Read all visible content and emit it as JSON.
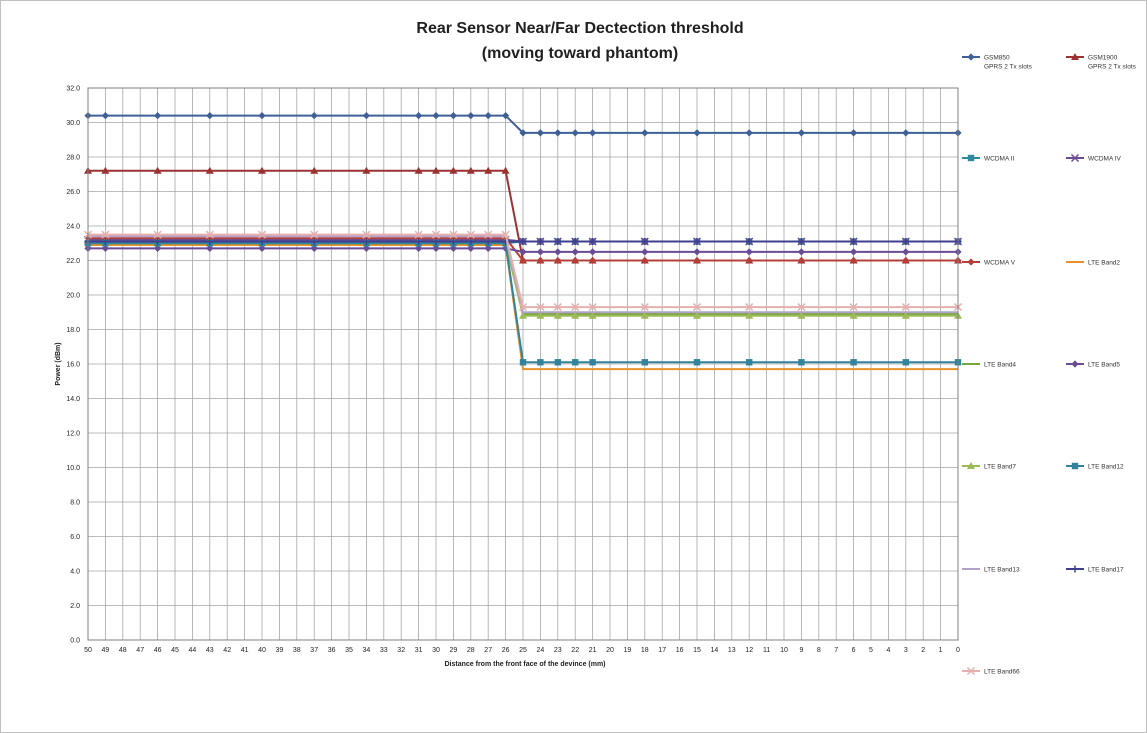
{
  "chart_data": {
    "type": "line",
    "title": [
      "Rear Sensor Near/Far Dectection threshold",
      "(moving toward phantom)"
    ],
    "xlabel": "Distance from the front face of the devince (mm)",
    "ylabel": "Power (dBm)",
    "xlim": [
      50,
      0
    ],
    "ylim": [
      0,
      32
    ],
    "ytick_step": 2,
    "grid": true,
    "legend_position": "right",
    "x_ticks": [
      50,
      49,
      48,
      47,
      46,
      45,
      44,
      43,
      42,
      41,
      40,
      39,
      38,
      37,
      36,
      35,
      34,
      33,
      32,
      31,
      30,
      29,
      28,
      27,
      26,
      25,
      24,
      23,
      22,
      21,
      20,
      19,
      18,
      17,
      16,
      15,
      14,
      13,
      12,
      11,
      10,
      9,
      8,
      7,
      6,
      5,
      4,
      3,
      2,
      1,
      0
    ],
    "y_ticks": [
      "0.0",
      "2.0",
      "4.0",
      "6.0",
      "8.0",
      "10.0",
      "12.0",
      "14.0",
      "16.0",
      "18.0",
      "20.0",
      "22.0",
      "24.0",
      "26.0",
      "28.0",
      "30.0",
      "32.0"
    ],
    "x": [
      50,
      49,
      46,
      43,
      40,
      37,
      34,
      31,
      30,
      29,
      28,
      27,
      26,
      25,
      24,
      23,
      22,
      21,
      18,
      15,
      12,
      9,
      6,
      3,
      0
    ],
    "series": [
      {
        "name": "GSM850\nGPRS 2 Tx slots",
        "color": "#3f5f97",
        "marker": "diamond",
        "before": 30.4,
        "after": 29.4
      },
      {
        "name": "GSM1900\nGPRS 2 Tx slots",
        "color": "#9b3232",
        "marker": "triangle",
        "before": 27.2,
        "after": 22.0
      },
      {
        "name": "WCDMA II",
        "color": "#2e8b9b",
        "marker": "square",
        "before": 23.0,
        "after": 23.1
      },
      {
        "name": "WCDMA IV",
        "color": "#6a4b96",
        "marker": "x",
        "before": 23.2,
        "after": 23.1
      },
      {
        "name": "WCDMA V",
        "color": "#b5403a",
        "marker": "diamond",
        "before": 23.3,
        "after": 22.0
      },
      {
        "name": "LTE Band2",
        "color": "#e8922c",
        "marker": "none",
        "before": 22.9,
        "after": 15.7
      },
      {
        "name": "LTE Band4",
        "color": "#77a63c",
        "marker": "none",
        "before": 23.0,
        "after": 18.9
      },
      {
        "name": "LTE Band5",
        "color": "#6a4b96",
        "marker": "diamond",
        "before": 22.7,
        "after": 22.5
      },
      {
        "name": "LTE Band7",
        "color": "#9bbb59",
        "marker": "triangle",
        "before": 23.1,
        "after": 18.8
      },
      {
        "name": "LTE Band12",
        "color": "#31849b",
        "marker": "square",
        "before": 23.0,
        "after": 16.1
      },
      {
        "name": "LTE Band13",
        "color": "#b3a2c7",
        "marker": "none",
        "before": 23.4,
        "after": 19.0
      },
      {
        "name": "LTE Band17",
        "color": "#403f8f",
        "marker": "plus",
        "before": 23.1,
        "after": 23.1
      },
      {
        "name": "LTE Band66",
        "color": "#e6b0b0",
        "marker": "x",
        "before": 23.5,
        "after": 19.3
      }
    ]
  }
}
